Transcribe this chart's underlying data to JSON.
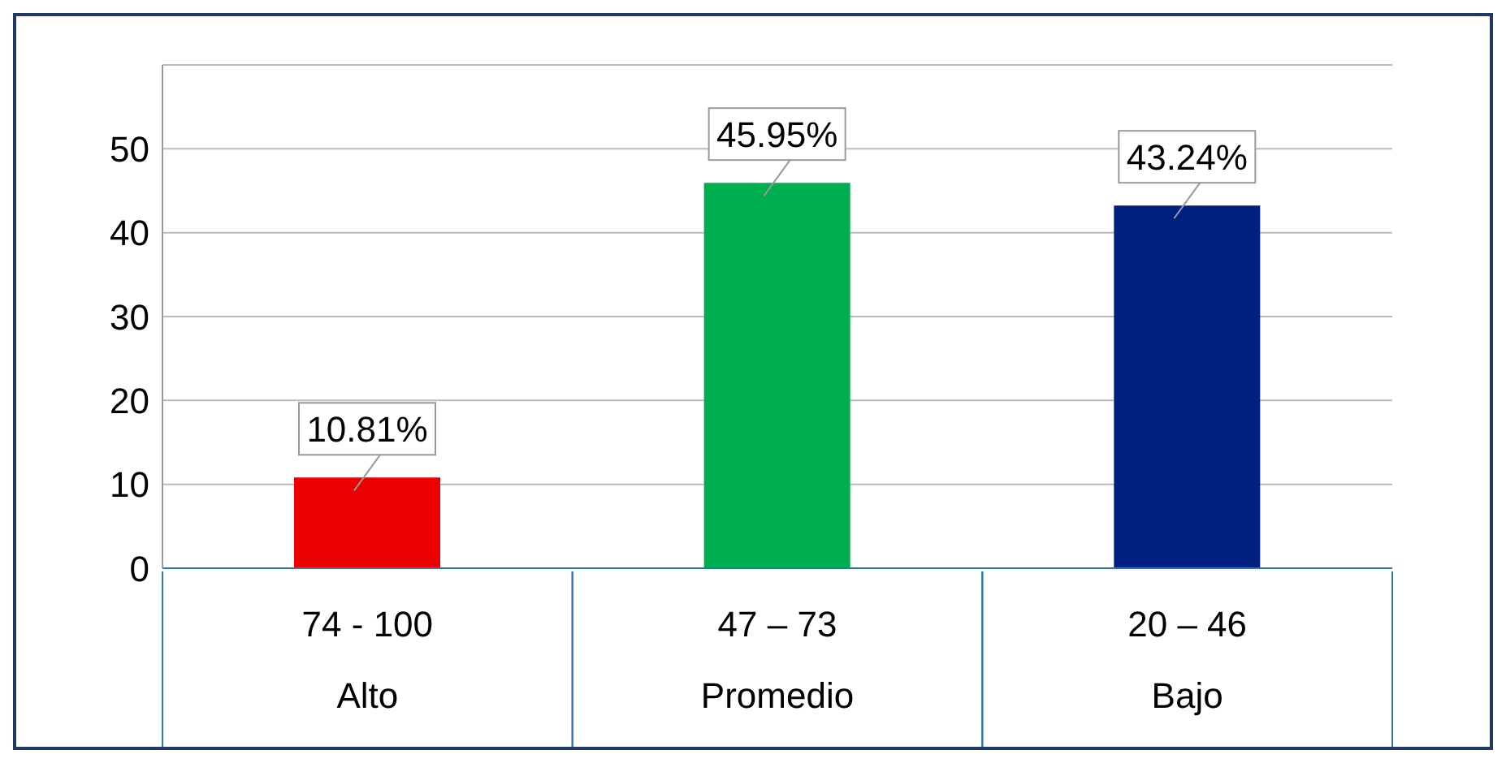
{
  "chart_data": {
    "type": "bar",
    "categories": [
      "74 - 100\nAlto",
      "47 – 73\nPromedio",
      "20 – 46\nBajo"
    ],
    "values": [
      10.81,
      45.95,
      43.24
    ],
    "colors": [
      "#ee0000",
      "#00b050",
      "#002080"
    ],
    "value_labels": [
      "10.81%",
      "45.95%",
      "43.24%"
    ],
    "ylim": [
      0,
      60
    ],
    "yticks": [
      0,
      10,
      20,
      30,
      40,
      50,
      {
        "value": 60,
        "label": null
      }
    ],
    "grid": "y"
  }
}
